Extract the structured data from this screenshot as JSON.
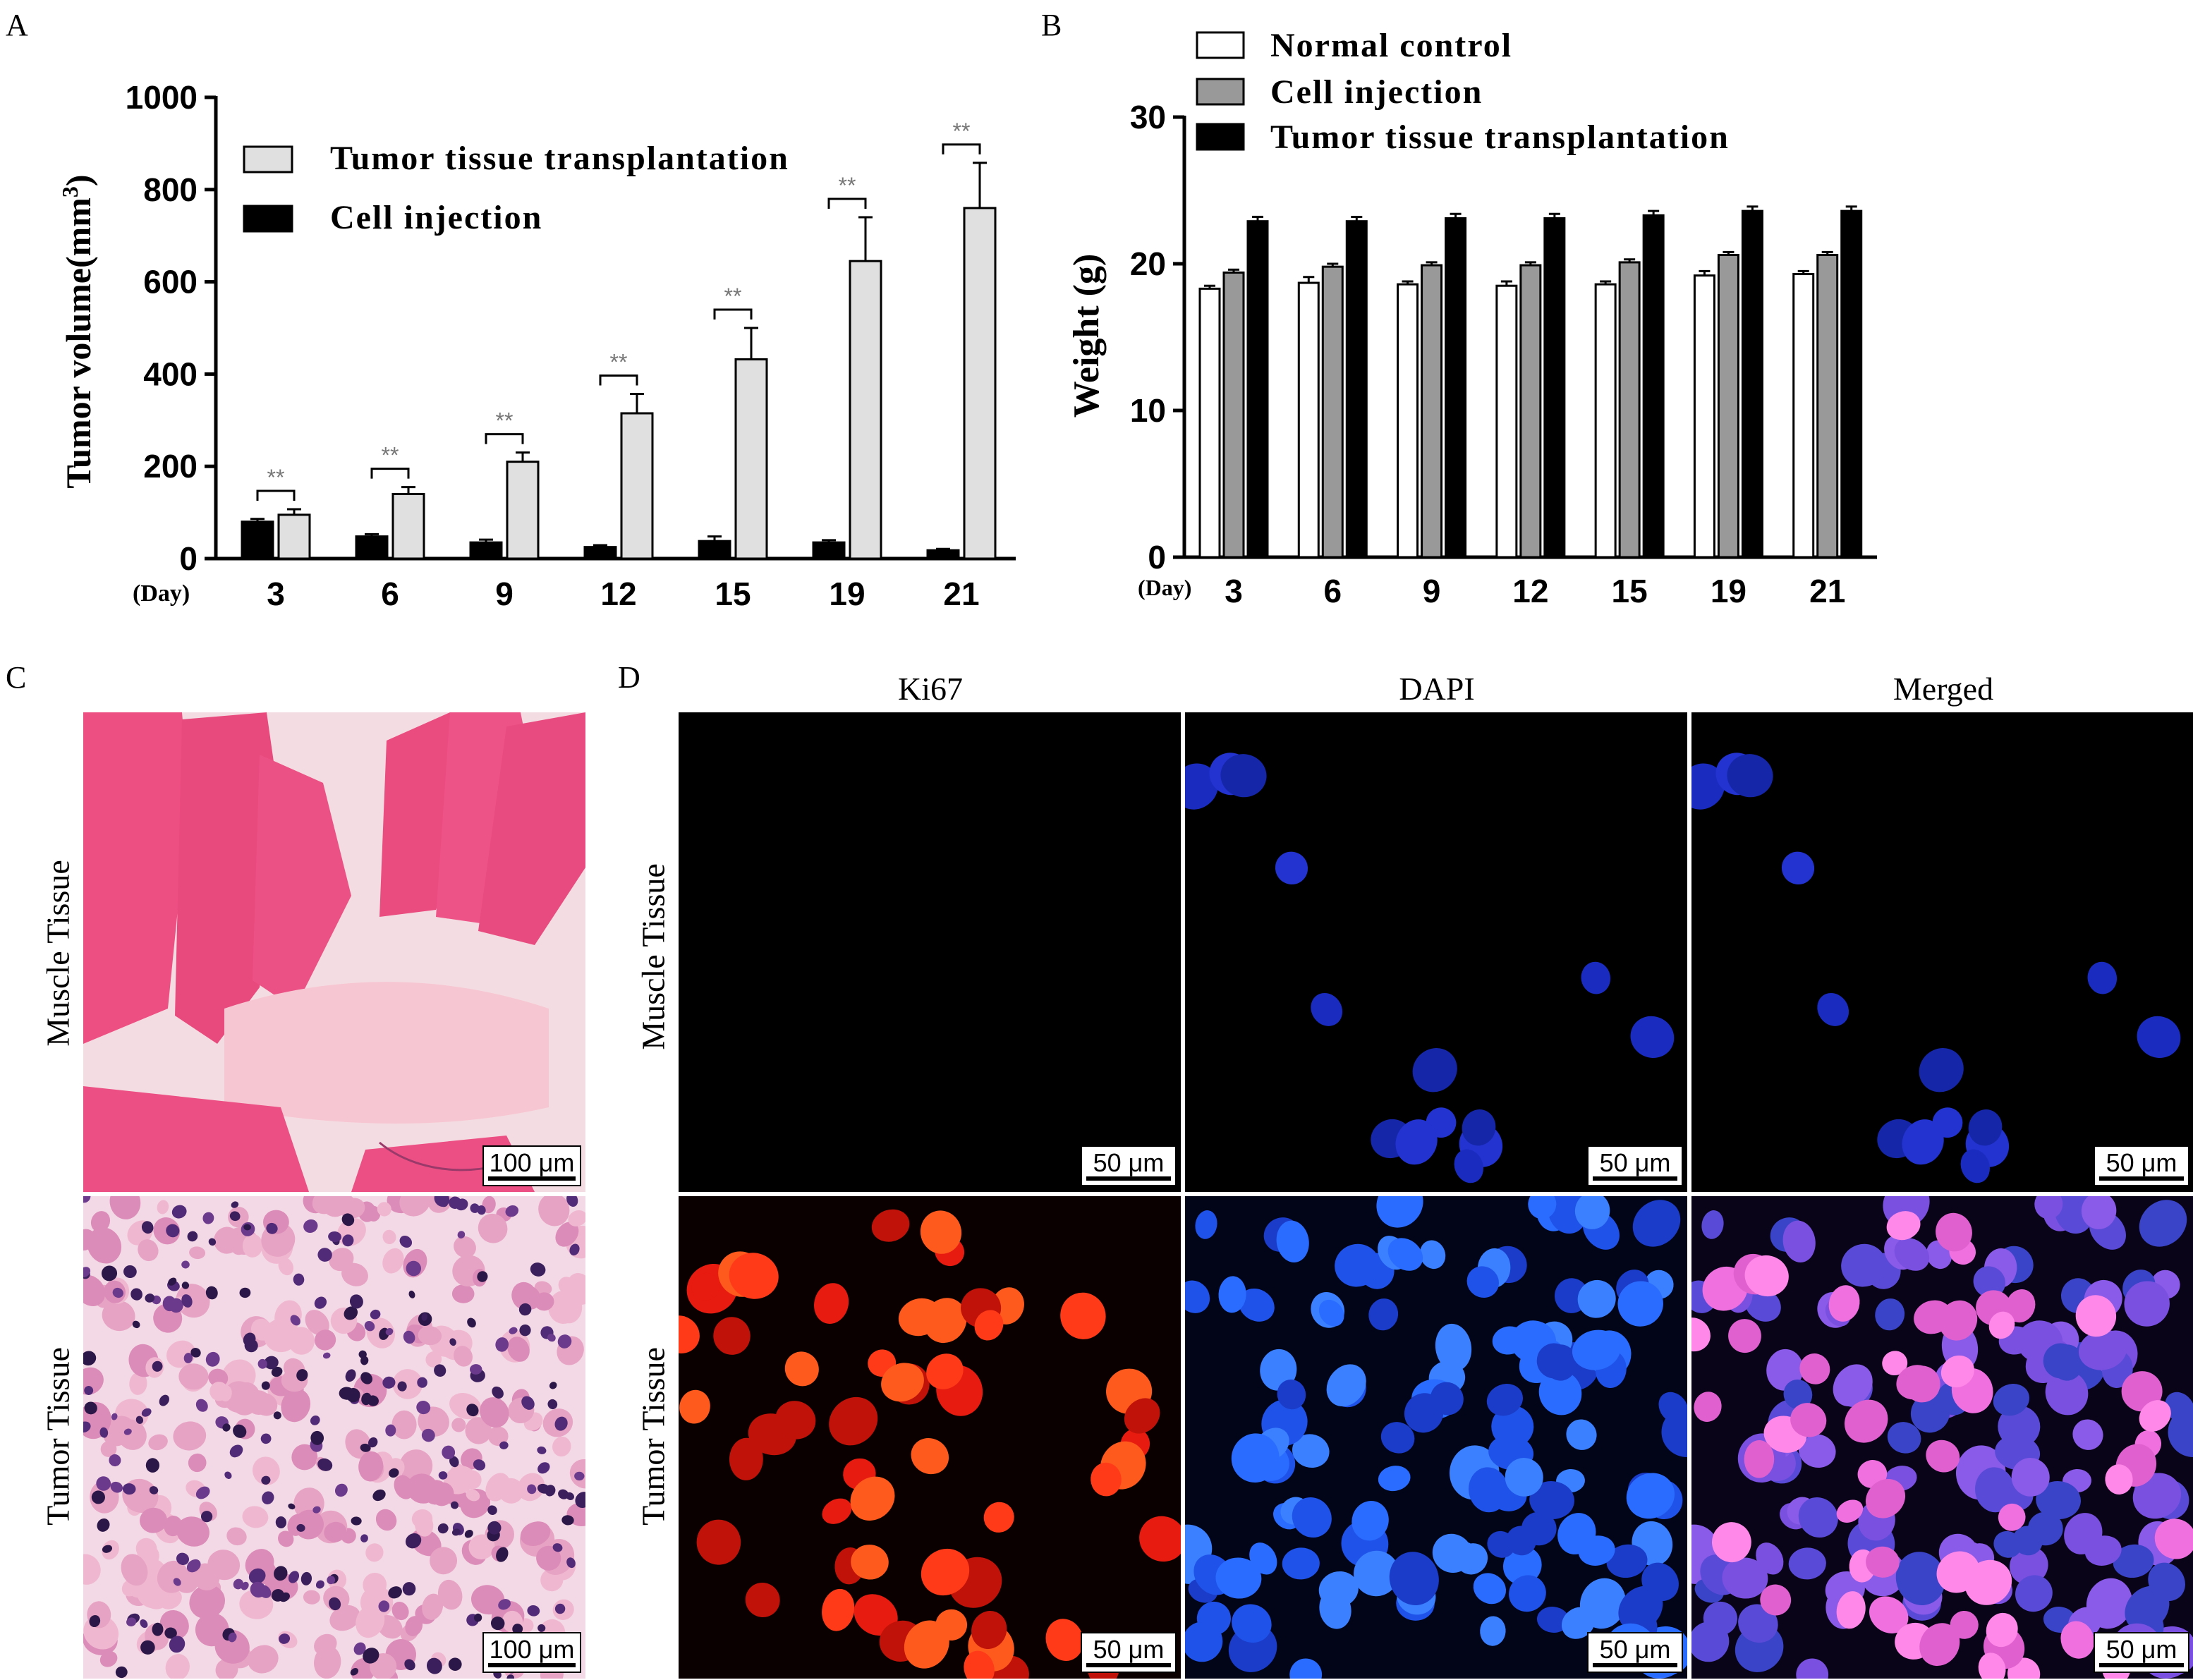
{
  "panels": {
    "A": "A",
    "B": "B",
    "C": "C",
    "D": "D"
  },
  "chart_data": [
    {
      "type": "bar",
      "title": "",
      "xlabel": "(Day)",
      "ylabel": "Tumor volume(mm3)",
      "ylabel_main": "Tumor volume(mm",
      "ylabel_sup": "3",
      "ylabel_end": ")",
      "ylim": [
        0,
        1000
      ],
      "yticks": [
        "0",
        "200",
        "400",
        "600",
        "800",
        "1000"
      ],
      "categories": [
        "3",
        "6",
        "9",
        "12",
        "15",
        "19",
        "21"
      ],
      "legend_position": "top-left",
      "series": [
        {
          "name": "Tumor tissue transplantation",
          "color": "#e0e0e0",
          "values": [
            95,
            140,
            210,
            315,
            432,
            645,
            760
          ],
          "errors": [
            12,
            15,
            20,
            42,
            68,
            95,
            98
          ]
        },
        {
          "name": "Cell injection",
          "color": "#000000",
          "values": [
            80,
            48,
            35,
            25,
            38,
            35,
            18
          ],
          "errors": [
            6,
            5,
            6,
            4,
            10,
            5,
            3
          ]
        }
      ],
      "significance": [
        "**",
        "**",
        "**",
        "**",
        "**",
        "**",
        "**"
      ]
    },
    {
      "type": "bar",
      "title": "",
      "xlabel": "(Day)",
      "ylabel": "Weight (g)",
      "ylim": [
        0,
        30
      ],
      "yticks": [
        "0",
        "10",
        "20",
        "30"
      ],
      "categories": [
        "3",
        "6",
        "9",
        "12",
        "15",
        "19",
        "21"
      ],
      "legend_position": "top-left",
      "series": [
        {
          "name": "Normal control",
          "color": "#ffffff",
          "values": [
            18.3,
            18.7,
            18.6,
            18.5,
            18.6,
            19.2,
            19.3
          ],
          "errors": [
            0.2,
            0.4,
            0.2,
            0.3,
            0.2,
            0.3,
            0.2
          ]
        },
        {
          "name": "Cell injection",
          "color": "#999999",
          "values": [
            19.4,
            19.8,
            19.9,
            19.9,
            20.1,
            20.6,
            20.6
          ],
          "errors": [
            0.2,
            0.2,
            0.2,
            0.2,
            0.2,
            0.2,
            0.2
          ]
        },
        {
          "name": "Tumor tissue transplantation",
          "color": "#000000",
          "values": [
            22.9,
            22.9,
            23.1,
            23.1,
            23.3,
            23.6,
            23.6
          ],
          "errors": [
            0.3,
            0.3,
            0.3,
            0.3,
            0.3,
            0.3,
            0.3
          ]
        }
      ]
    }
  ],
  "panel_c": {
    "rows": [
      "Muscle Tissue",
      "Tumor Tissue"
    ],
    "scale_label": "100 μm"
  },
  "panel_d": {
    "columns": [
      "Ki67",
      "DAPI",
      "Merged"
    ],
    "rows": [
      "Muscle Tissue",
      "Tumor Tissue"
    ],
    "scale_label": "50 μm"
  }
}
